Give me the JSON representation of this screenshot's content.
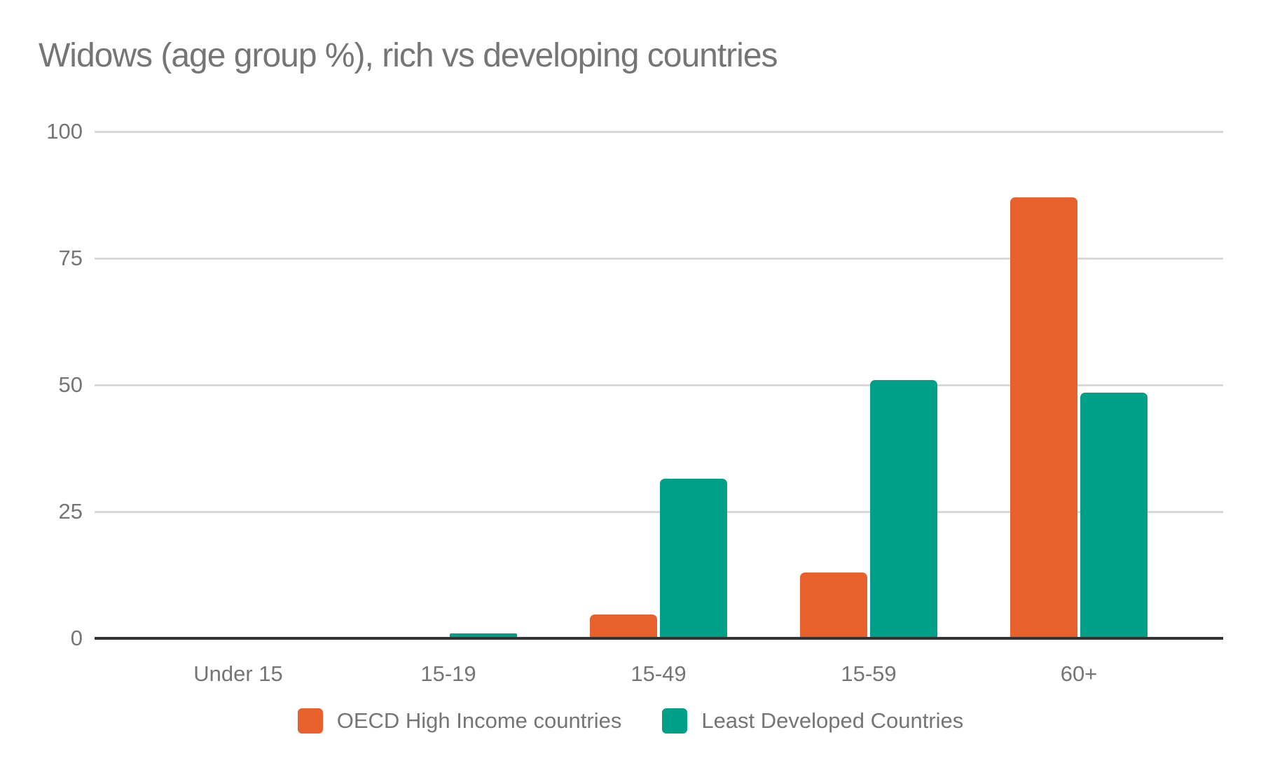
{
  "title": "Widows (age group %), rich vs developing countries",
  "colors": {
    "series_oecd": "#e8612c",
    "series_ldc": "#00a088",
    "text_gray": "#757575",
    "gridline": "#d9d9d9",
    "axis": "#333333",
    "background": "#ffffff"
  },
  "chart_data": {
    "type": "bar",
    "title": "Widows (age group %), rich vs developing countries",
    "categories": [
      "Under 15",
      "15-19",
      "15-49",
      "15-59",
      "60+"
    ],
    "series": [
      {
        "name": "OECD High Income countries",
        "color": "#e8612c",
        "values": [
          0.2,
          0.2,
          4.7,
          13,
          87
        ]
      },
      {
        "name": "Least Developed Countries",
        "color": "#00a088",
        "values": [
          0.2,
          1,
          31.5,
          51,
          48.5
        ]
      }
    ],
    "xlabel": "",
    "ylabel": "",
    "ylim": [
      0,
      100
    ],
    "yticks": [
      0,
      25,
      50,
      75,
      100
    ],
    "grid": true,
    "legend_position": "bottom"
  }
}
